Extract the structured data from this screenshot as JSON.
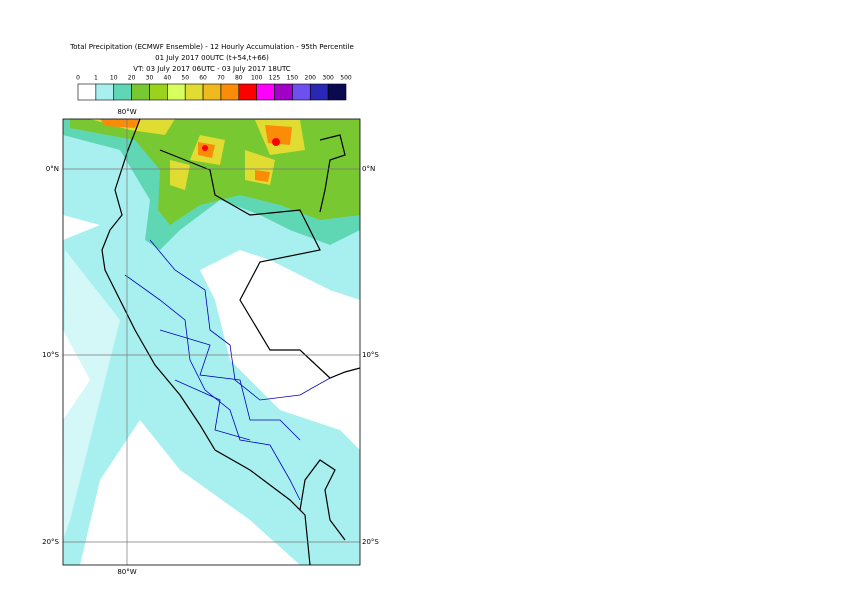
{
  "header": {
    "title": "Total Precipitation (ECMWF Ensemble) - 12 Hourly Accumulation - 95th Percentile",
    "subtitle": "01 July 2017 00UTC (t+54,t+66)",
    "valid_time": "VT: 03 July 2017 06UTC - 03 July 2017 18UTC"
  },
  "legend": {
    "labels": [
      "0",
      "1",
      "10",
      "20",
      "30",
      "40",
      "50",
      "60",
      "70",
      "80",
      "100",
      "125",
      "150",
      "200",
      "300",
      "500"
    ],
    "colors": [
      "#ffffff",
      "#a8f0f0",
      "#5fd7b4",
      "#78c832",
      "#9bd21e",
      "#d7ff5f",
      "#e1dc32",
      "#f0b91e",
      "#fa8c0a",
      "#ff0000",
      "#ff00ff",
      "#a000c8",
      "#6e50f0",
      "#2828b4",
      "#0a0a50"
    ]
  },
  "map": {
    "lon_labels": [
      "80°W"
    ],
    "lat_labels": [
      "0°N",
      "10°S",
      "20°S"
    ]
  }
}
